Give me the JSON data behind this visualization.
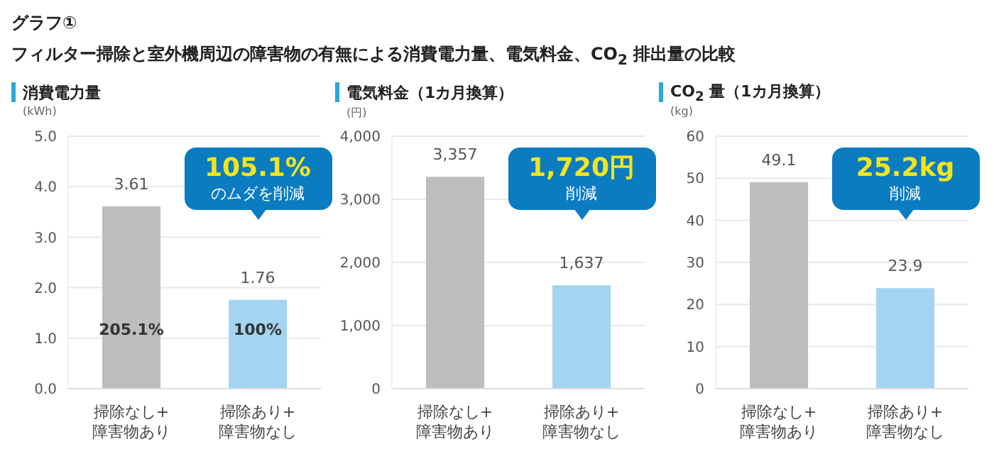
{
  "chart_data": [
    {
      "type": "other",
      "title": "グラフ①",
      "subtitle": "フィルター掃除と室外機周辺の障害物の有無による消費電力量、電気料金、CO$_{2}$ 排出量の比較"
    },
    {
      "type": "bar",
      "title": "消費電力量",
      "ylabel": "(kWh)",
      "categories": [
        "掃除なし+障害物あり",
        "掃除あり+障害物なし"
      ],
      "values": [
        3.61,
        1.76
      ],
      "colors": [
        "#bdbdbd",
        "#a3d4f0"
      ],
      "ylim": [
        0,
        5
      ],
      "yticks": [
        {
          "value": 0,
          "label": "0.0"
        },
        {
          "value": 1,
          "label": "1.0"
        },
        {
          "value": 2,
          "label": "2.0"
        },
        {
          "value": 3,
          "label": "3.0"
        },
        {
          "value": 4,
          "label": "4.0"
        },
        {
          "value": 5,
          "label": "5.0"
        }
      ],
      "grid": "y",
      "data_labels": true,
      "annotations": [
        "105.1%",
        "のムダを削減",
        "205.1%",
        "100%"
      ]
    },
    {
      "type": "bar",
      "title": "電気料金（1カ月換算）",
      "ylabel": "(円)",
      "categories": [
        "掃除なし+障害物あり",
        "掃除あり+障害物なし"
      ],
      "values": [
        3357,
        1637
      ],
      "colors": [
        "#bdbdbd",
        "#a3d4f0"
      ],
      "ylim": [
        0,
        4000
      ],
      "yticks": [
        0,
        {
          "value": 1000,
          "label": "1,000"
        },
        {
          "value": 2000,
          "label": "2,000"
        },
        {
          "value": 3000,
          "label": "3,000"
        },
        {
          "value": 4000,
          "label": "4,000"
        }
      ],
      "grid": "y",
      "value_labels": [
        "3,357",
        "1,637"
      ],
      "annotations": [
        "1,720円",
        "削減"
      ]
    },
    {
      "type": "bar",
      "title": "CO$_{2}$ 量（1カ月換算）",
      "ylabel": "(kg)",
      "categories": [
        "掃除なし+障害物あり",
        "掃除あり+障害物なし"
      ],
      "values": [
        49.1,
        23.9
      ],
      "colors": [
        "#bdbdbd",
        "#a3d4f0"
      ],
      "ylim": [
        0,
        60
      ],
      "yticks": [
        0,
        10,
        20,
        30,
        40,
        50,
        60
      ],
      "grid": "y",
      "data_labels": true,
      "annotations": [
        "25.2kg",
        "削減"
      ]
    }
  ]
}
